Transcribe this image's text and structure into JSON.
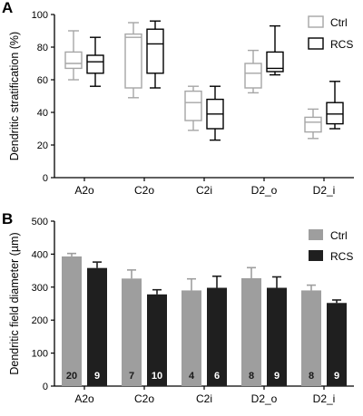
{
  "panels": {
    "a_letter": "A",
    "b_letter": "B"
  },
  "colors": {
    "ctrl_box": "#a6a6a6",
    "rcs_box": "#000000",
    "ctrl_bar": "#9e9e9e",
    "rcs_bar": "#1f1f1f",
    "n_text_ctrl": "#1a1a1a",
    "n_text_rcs": "#ffffff"
  },
  "chart_data": [
    {
      "type": "box",
      "panel": "A",
      "ylabel": "Dendritic stratification (%)",
      "xlabel": "",
      "ylim": [
        0,
        100
      ],
      "yticks": [
        0,
        20,
        40,
        60,
        80,
        100
      ],
      "categories": [
        "A2o",
        "C2o",
        "C2i",
        "D2_o",
        "D2_i"
      ],
      "legend": {
        "position": "top-right",
        "entries": [
          "Ctrl",
          "RCS"
        ]
      },
      "series": [
        {
          "name": "Ctrl",
          "boxes": [
            {
              "min": 60,
              "q1": 67,
              "median": 70,
              "q3": 77,
              "max": 90
            },
            {
              "min": 49,
              "q1": 55,
              "median": 86,
              "q3": 88,
              "max": 95
            },
            {
              "min": 29,
              "q1": 35,
              "median": 46,
              "q3": 53,
              "max": 56
            },
            {
              "min": 52,
              "q1": 55,
              "median": 64,
              "q3": 70,
              "max": 78
            },
            {
              "min": 24,
              "q1": 28,
              "median": 34,
              "q3": 37,
              "max": 42
            }
          ]
        },
        {
          "name": "RCS",
          "boxes": [
            {
              "min": 56,
              "q1": 64,
              "median": 71,
              "q3": 75,
              "max": 86
            },
            {
              "min": 55,
              "q1": 64,
              "median": 82,
              "q3": 91,
              "max": 96
            },
            {
              "min": 23,
              "q1": 30,
              "median": 39,
              "q3": 48,
              "max": 56
            },
            {
              "min": 63,
              "q1": 65,
              "median": 67,
              "q3": 77,
              "max": 93
            },
            {
              "min": 30,
              "q1": 33,
              "median": 39,
              "q3": 46,
              "max": 59
            }
          ]
        }
      ]
    },
    {
      "type": "bar",
      "panel": "B",
      "ylabel": "Dendritic field diameter (µm)",
      "xlabel": "",
      "ylim": [
        0,
        500
      ],
      "yticks": [
        0,
        100,
        200,
        300,
        400,
        500
      ],
      "categories": [
        "A2o",
        "C2o",
        "C2i",
        "D2_o",
        "D2_i"
      ],
      "legend": {
        "position": "top-right",
        "entries": [
          "Ctrl",
          "RCS"
        ]
      },
      "series": [
        {
          "name": "Ctrl",
          "values": [
            393,
            326,
            290,
            327,
            290
          ],
          "errors": [
            9,
            26,
            35,
            32,
            16
          ],
          "n": [
            "20",
            "7",
            "4",
            "8",
            "8"
          ]
        },
        {
          "name": "RCS",
          "values": [
            358,
            278,
            298,
            298,
            252
          ],
          "errors": [
            18,
            14,
            35,
            33,
            9
          ],
          "n": [
            "9",
            "10",
            "6",
            "9",
            "9"
          ]
        }
      ]
    }
  ]
}
